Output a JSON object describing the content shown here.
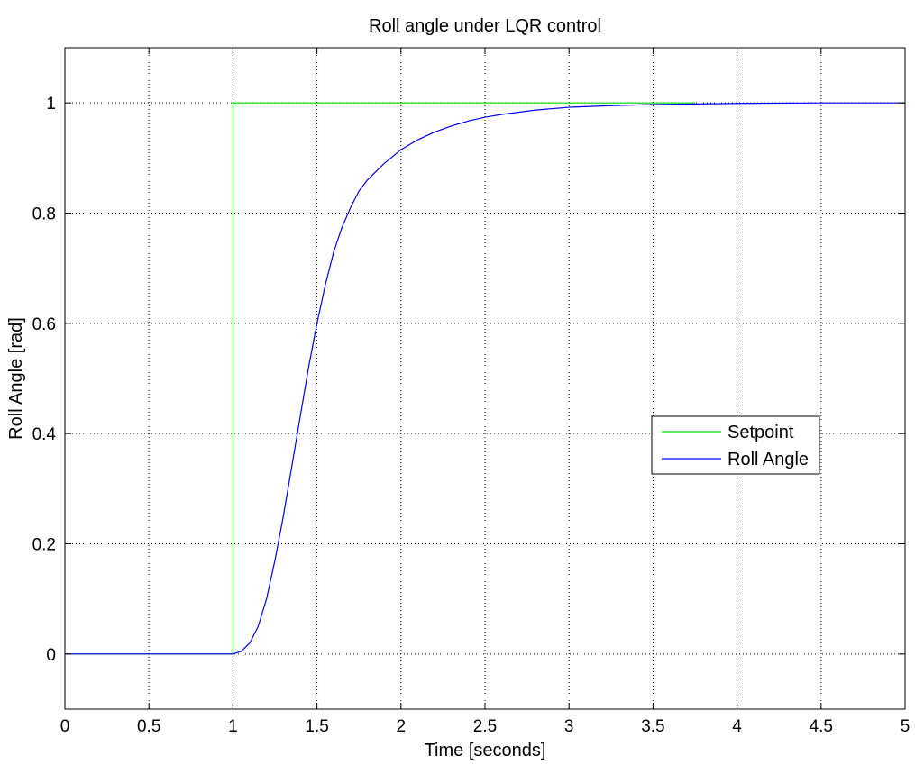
{
  "chart_data": {
    "type": "line",
    "title": "Roll angle under LQR control",
    "xlabel": "Time [seconds]",
    "ylabel": "Roll Angle [rad]",
    "xlim": [
      0,
      5
    ],
    "ylim": [
      -0.1,
      1.1
    ],
    "xticks": [
      0,
      0.5,
      1,
      1.5,
      2,
      2.5,
      3,
      3.5,
      4,
      4.5,
      5
    ],
    "xtick_labels": [
      "0",
      "0.5",
      "1",
      "1.5",
      "2",
      "2.5",
      "3",
      "3.5",
      "4",
      "4.5",
      "5"
    ],
    "yticks": [
      0,
      0.2,
      0.4,
      0.6,
      0.8,
      1
    ],
    "ytick_labels": [
      "0",
      "0.2",
      "0.4",
      "0.6",
      "0.8",
      "1"
    ],
    "grid": true,
    "legend_position": "right",
    "series": [
      {
        "name": "Setpoint",
        "color": "#00e000",
        "x": [
          0,
          1,
          1,
          3.75
        ],
        "y": [
          0,
          0,
          1,
          1
        ]
      },
      {
        "name": "Roll Angle",
        "color": "#0000ff",
        "x": [
          0,
          1,
          1.05,
          1.1,
          1.15,
          1.2,
          1.25,
          1.3,
          1.35,
          1.4,
          1.45,
          1.5,
          1.55,
          1.6,
          1.65,
          1.7,
          1.75,
          1.8,
          1.9,
          2.0,
          2.1,
          2.2,
          2.3,
          2.4,
          2.5,
          2.6,
          2.8,
          3.0,
          3.25,
          3.5,
          3.75,
          4.0,
          4.5,
          5.0
        ],
        "y": [
          0,
          0,
          0.005,
          0.02,
          0.05,
          0.1,
          0.17,
          0.25,
          0.34,
          0.43,
          0.52,
          0.6,
          0.67,
          0.73,
          0.775,
          0.81,
          0.84,
          0.86,
          0.89,
          0.915,
          0.933,
          0.947,
          0.958,
          0.967,
          0.974,
          0.979,
          0.987,
          0.992,
          0.995,
          0.997,
          0.998,
          0.999,
          1.0,
          1.0
        ]
      }
    ]
  }
}
